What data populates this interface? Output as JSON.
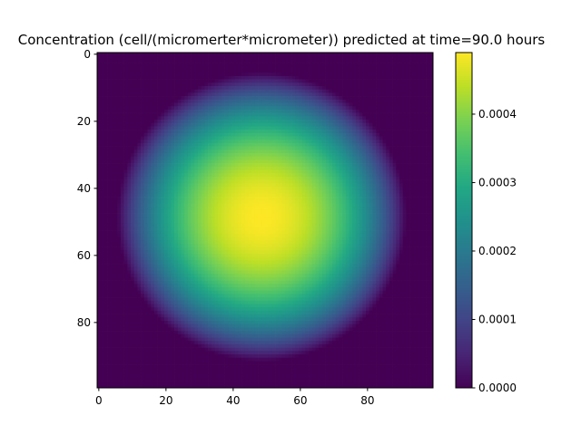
{
  "chart_data": {
    "type": "heatmap",
    "title": "Concentration (cell/(micromerter*micrometer)) predicted at time=90.0 hours",
    "xlabel": "",
    "ylabel": "",
    "grid_size": 100,
    "x_ticks": [
      "0",
      "20",
      "40",
      "60",
      "80"
    ],
    "y_ticks": [
      "0",
      "20",
      "40",
      "60",
      "80"
    ],
    "xlim": [
      -0.5,
      99.5
    ],
    "ylim": [
      99.5,
      -0.5
    ],
    "field": {
      "shape": "radial",
      "center": [
        48.5,
        48.5
      ],
      "radius_to_zero": 43,
      "peak_value": 0.00049,
      "profile": "peak * (1 - (r / radius_to_zero)^2), zero outside"
    },
    "colormap": "viridis",
    "colorbar": {
      "range": [
        0.0,
        0.00049
      ],
      "ticks": [
        {
          "value": 0.0,
          "label": "0.0000"
        },
        {
          "value": 0.0001,
          "label": "0.0001"
        },
        {
          "value": 0.0002,
          "label": "0.0002"
        },
        {
          "value": 0.0003,
          "label": "0.0003"
        },
        {
          "value": 0.0004,
          "label": "0.0004"
        }
      ]
    }
  }
}
